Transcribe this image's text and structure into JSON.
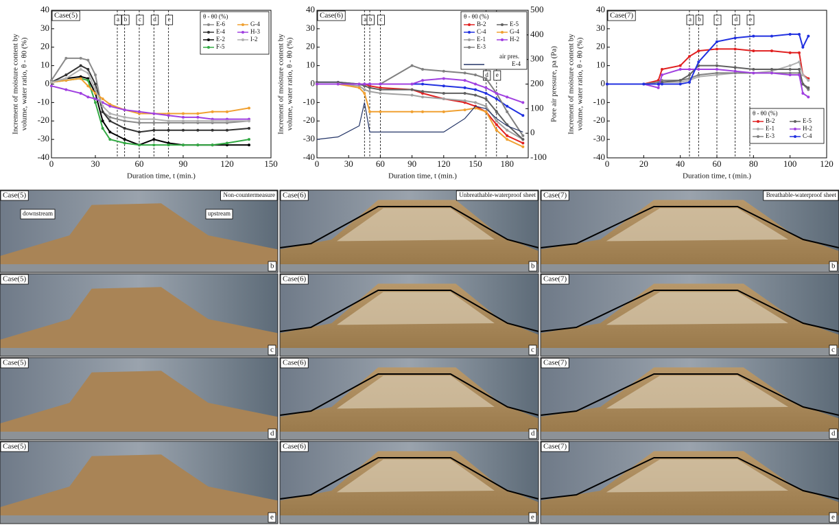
{
  "chart_data": [
    {
      "type": "line",
      "case_label": "Case(5)",
      "x_label": "Duration time, t (min.)",
      "y_label": [
        "Increment of moisture content by",
        "volume, water ratio, θ - θ0 (%)"
      ],
      "legend_title": "θ - θ0 (%)",
      "xlim": [
        0,
        150
      ],
      "xticks": [
        0,
        30,
        60,
        90,
        120,
        150
      ],
      "ylim": [
        -40,
        40
      ],
      "yticks": [
        -40,
        -30,
        -20,
        -10,
        0,
        10,
        20,
        30,
        40
      ],
      "markers": [
        {
          "x": 45,
          "label": "a"
        },
        {
          "x": 50,
          "label": "b"
        },
        {
          "x": 60,
          "label": "c"
        },
        {
          "x": 70,
          "label": "d"
        },
        {
          "x": 80,
          "label": "e"
        }
      ],
      "x": [
        0,
        10,
        20,
        25,
        30,
        35,
        40,
        50,
        60,
        70,
        80,
        90,
        100,
        110,
        120,
        135
      ],
      "series": [
        {
          "name": "E-6",
          "color": "#8a8a8a",
          "values": [
            2,
            14,
            14,
            13,
            5,
            -15,
            -18,
            -20,
            -21,
            -21,
            -21,
            -21,
            -21,
            -21,
            -21,
            -20
          ]
        },
        {
          "name": "E-4",
          "color": "#333333",
          "values": [
            1,
            5,
            10,
            8,
            0,
            -15,
            -20,
            -24,
            -26,
            -25,
            -25,
            -25,
            -25,
            -25,
            -25,
            -24
          ]
        },
        {
          "name": "E-2",
          "color": "#000000",
          "values": [
            1,
            3,
            4,
            3,
            -5,
            -20,
            -26,
            -30,
            -33,
            -30,
            -32,
            -33,
            -33,
            -33,
            -33,
            -33
          ]
        },
        {
          "name": "F-5",
          "color": "#33aa44",
          "values": [
            1,
            2,
            3,
            2,
            -10,
            -24,
            -30,
            -32,
            -33,
            -33,
            -33,
            -33,
            -33,
            -33,
            -32,
            -30
          ]
        },
        {
          "name": "G-4",
          "color": "#f0a030",
          "values": [
            1,
            2,
            3,
            -1,
            -5,
            -8,
            -11,
            -14,
            -16,
            -16,
            -16,
            -16,
            -16,
            -15,
            -15,
            -13
          ]
        },
        {
          "name": "H-3",
          "color": "#a040e0",
          "values": [
            -1,
            -3,
            -5,
            -7,
            -8,
            -10,
            -12,
            -14,
            -15,
            -16,
            -17,
            -18,
            -18,
            -19,
            -19,
            -19
          ]
        },
        {
          "name": "I-2",
          "color": "#b0b0b0",
          "values": [
            1,
            3,
            8,
            6,
            -3,
            -12,
            -16,
            -18,
            -19,
            -19,
            -20,
            -20,
            -20,
            -20,
            -20,
            -20
          ]
        }
      ]
    },
    {
      "type": "line",
      "case_label": "Case(6)",
      "x_label": "Duration time, t (min.)",
      "y_label": [
        "Increment of moisture content by",
        "volume, water ratio, θ - θ0 (%)"
      ],
      "y2_label": "Pore air pressure, pa (Pa)",
      "legend_title": "θ - θ0 (%)",
      "air_label": "air pres.",
      "xlim": [
        0,
        200
      ],
      "xticks": [
        0,
        30,
        60,
        90,
        120,
        150,
        180
      ],
      "ylim": [
        -40,
        40
      ],
      "yticks": [
        -40,
        -30,
        -20,
        -10,
        0,
        10,
        20,
        30,
        40
      ],
      "y2lim": [
        -100,
        500
      ],
      "y2ticks": [
        -100,
        0,
        100,
        200,
        300,
        400,
        500
      ],
      "markers": [
        {
          "x": 45,
          "label": "a"
        },
        {
          "x": 50,
          "label": "b"
        },
        {
          "x": 60,
          "label": "c"
        },
        {
          "x": 160,
          "label": "d"
        },
        {
          "x": 170,
          "label": "e"
        }
      ],
      "x": [
        0,
        20,
        40,
        45,
        50,
        60,
        90,
        100,
        120,
        140,
        150,
        160,
        170,
        180,
        195
      ],
      "series": [
        {
          "name": "B-2",
          "color": "#e02020",
          "values": [
            0,
            0,
            0,
            0,
            -1,
            -2,
            -3,
            -5,
            -8,
            -10,
            -12,
            -15,
            -22,
            -28,
            -32
          ]
        },
        {
          "name": "C-4",
          "color": "#2030e0",
          "values": [
            1,
            1,
            0,
            0,
            0,
            0,
            0,
            0,
            -1,
            -2,
            -3,
            -5,
            -8,
            -12,
            -17
          ]
        },
        {
          "name": "E-1",
          "color": "#a0a0a0",
          "values": [
            0,
            0,
            -1,
            -3,
            -4,
            -5,
            -6,
            -7,
            -8,
            -9,
            -10,
            -12,
            -20,
            -25,
            -30
          ]
        },
        {
          "name": "E-3",
          "color": "#808080",
          "values": [
            0,
            0,
            0,
            0,
            0,
            0,
            10,
            8,
            7,
            6,
            5,
            3,
            -5,
            -15,
            -28
          ]
        },
        {
          "name": "E-5",
          "color": "#606060",
          "values": [
            1,
            1,
            0,
            -1,
            -2,
            -3,
            -3,
            -4,
            -5,
            -5,
            -6,
            -8,
            -15,
            -22,
            -30
          ]
        },
        {
          "name": "G-4",
          "color": "#f0a030",
          "values": [
            0,
            0,
            -2,
            -5,
            -15,
            -15,
            -15,
            -15,
            -15,
            -14,
            -13,
            -15,
            -25,
            -30,
            -34
          ]
        },
        {
          "name": "H-2",
          "color": "#a040e0",
          "values": [
            0,
            0,
            0,
            0,
            0,
            0,
            0,
            2,
            3,
            2,
            0,
            -2,
            -5,
            -7,
            -10
          ]
        },
        {
          "name": "E-4",
          "color": "#223366",
          "axis": "y2",
          "values": [
            -25,
            -15,
            30,
            125,
            5,
            5,
            5,
            5,
            5,
            60,
            110,
            100,
            60,
            30,
            5
          ]
        }
      ]
    },
    {
      "type": "line",
      "case_label": "Case(7)",
      "x_label": "Duration time, t (min.)",
      "y_label": [
        "Increment of moisture content by",
        "volume, water ratio, θ - θ0 (%)"
      ],
      "legend_title": "θ - θ0 (%)",
      "xlim": [
        0,
        120
      ],
      "xticks": [
        0,
        20,
        40,
        60,
        80,
        100,
        120
      ],
      "ylim": [
        -40,
        40
      ],
      "yticks": [
        -40,
        -30,
        -20,
        -10,
        0,
        10,
        20,
        30,
        40
      ],
      "markers": [
        {
          "x": 45,
          "label": "a"
        },
        {
          "x": 50,
          "label": "b"
        },
        {
          "x": 60,
          "label": "c"
        },
        {
          "x": 70,
          "label": "d"
        },
        {
          "x": 78,
          "label": "e"
        }
      ],
      "x": [
        0,
        20,
        28,
        30,
        40,
        45,
        50,
        60,
        70,
        80,
        90,
        100,
        105,
        107,
        110
      ],
      "series": [
        {
          "name": "B-2",
          "color": "#e02020",
          "values": [
            0,
            0,
            2,
            8,
            10,
            15,
            18,
            19,
            19,
            18,
            18,
            17,
            17,
            5,
            3
          ]
        },
        {
          "name": "E-1",
          "color": "#b0b0b0",
          "values": [
            0,
            0,
            0,
            1,
            1,
            2,
            4,
            5,
            6,
            6,
            7,
            10,
            12,
            5,
            2
          ]
        },
        {
          "name": "E-3",
          "color": "#808080",
          "values": [
            0,
            0,
            1,
            2,
            2,
            3,
            5,
            6,
            6,
            6,
            6,
            6,
            6,
            0,
            -3
          ]
        },
        {
          "name": "E-5",
          "color": "#606060",
          "values": [
            0,
            0,
            0,
            1,
            2,
            5,
            10,
            10,
            9,
            8,
            8,
            8,
            8,
            0,
            -2
          ]
        },
        {
          "name": "H-2",
          "color": "#a040e0",
          "values": [
            0,
            0,
            -2,
            5,
            8,
            8,
            8,
            8,
            7,
            6,
            6,
            5,
            5,
            -5,
            -7
          ]
        },
        {
          "name": "C-4",
          "color": "#2030e0",
          "values": [
            0,
            0,
            0,
            0,
            0,
            1,
            12,
            23,
            25,
            26,
            26,
            27,
            27,
            20,
            26
          ]
        }
      ]
    }
  ],
  "photos": {
    "columns": [
      {
        "case": "Case(5)",
        "condition": "Non-countermeasure",
        "side_labels": [
          "downstream",
          "upstream"
        ]
      },
      {
        "case": "Case(6)",
        "condition": "Unbreathable-waterproof sheet"
      },
      {
        "case": "Case(7)",
        "condition": "Breathable-waterproof sheet"
      }
    ],
    "rows": [
      "b",
      "c",
      "d",
      "e"
    ]
  }
}
